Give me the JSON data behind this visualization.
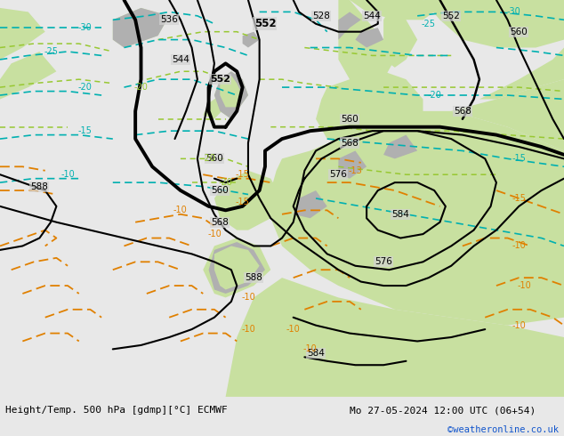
{
  "title_left": "Height/Temp. 500 hPa [gdmp][°C] ECMWF",
  "title_right": "Mo 27-05-2024 12:00 UTC (06+54)",
  "credit": "©weatheronline.co.uk",
  "fig_width": 6.34,
  "fig_height": 4.9,
  "dpi": 100,
  "ocean_color": "#d2d2d2",
  "land_green": "#c8e0a0",
  "land_gray": "#b0b0b0",
  "bottom_bg": "#e8e8e8",
  "cyan": "#00b0b0",
  "lime": "#98c832",
  "orange": "#e08000",
  "black_bold_lw": 2.8,
  "black_thin_lw": 1.5
}
